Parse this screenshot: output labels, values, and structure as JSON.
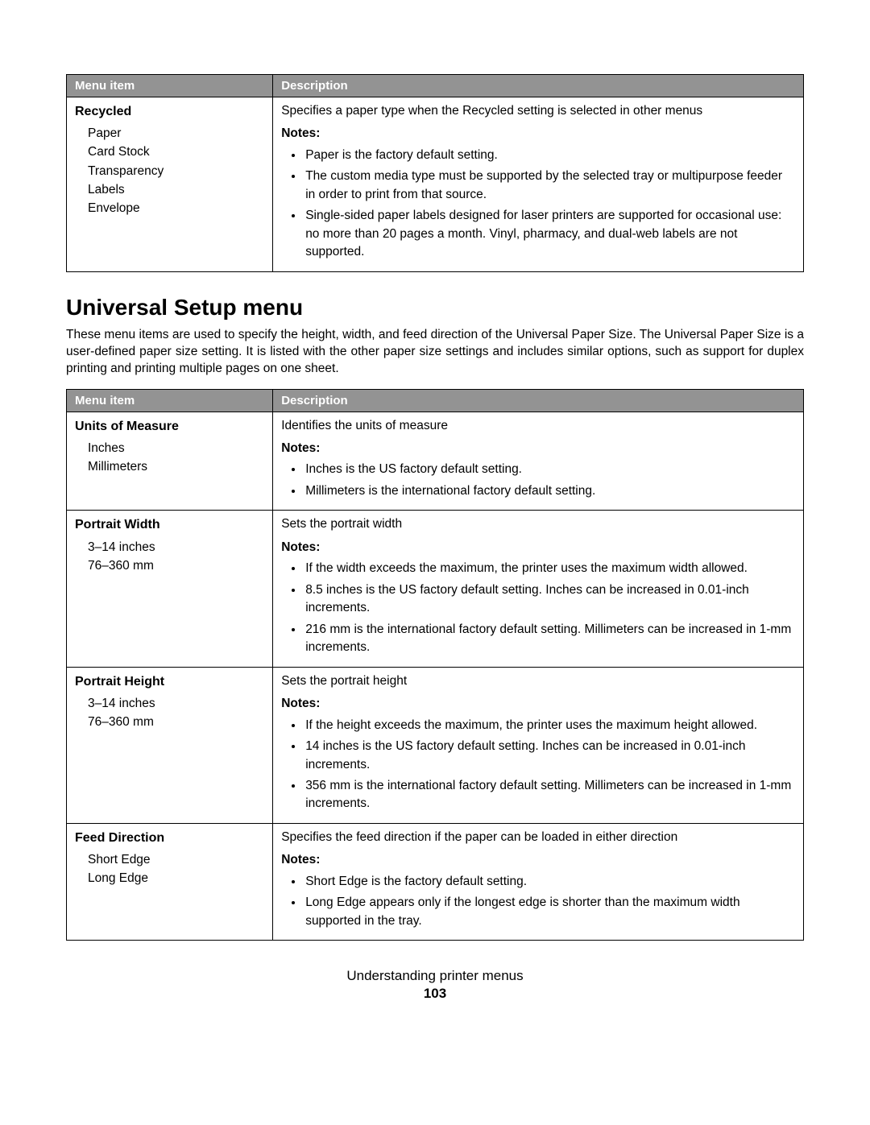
{
  "table1": {
    "headers": {
      "menu": "Menu item",
      "desc": "Description"
    },
    "rows": [
      {
        "title": "Recycled",
        "options": [
          "Paper",
          "Card Stock",
          "Transparency",
          "Labels",
          "Envelope"
        ],
        "lead": "Specifies a paper type when the Recycled setting is selected in other menus",
        "notesLabel": "Notes:",
        "notes": [
          "Paper is the factory default setting.",
          "The custom media type must be supported by the selected tray or multipurpose feeder in order to print from that source.",
          "Single-sided paper labels designed for laser printers are supported for occasional use: no more than 20 pages a month. Vinyl, pharmacy, and dual-web labels are not supported."
        ]
      }
    ]
  },
  "section": {
    "heading": "Universal Setup menu",
    "intro": "These menu items are used to specify the height, width, and feed direction of the Universal Paper Size. The Universal Paper Size is a user-defined paper size setting. It is listed with the other paper size settings and includes similar options, such as support for duplex printing and printing multiple pages on one sheet."
  },
  "table2": {
    "headers": {
      "menu": "Menu item",
      "desc": "Description"
    },
    "rows": [
      {
        "title": "Units of Measure",
        "options": [
          "Inches",
          "Millimeters"
        ],
        "lead": "Identifies the units of measure",
        "notesLabel": "Notes:",
        "notes": [
          "Inches is the US factory default setting.",
          "Millimeters is the international factory default setting."
        ]
      },
      {
        "title": "Portrait Width",
        "options": [
          "3–14 inches",
          "76–360 mm"
        ],
        "lead": "Sets the portrait width",
        "notesLabel": "Notes:",
        "notes": [
          "If the width exceeds the maximum, the printer uses the maximum width allowed.",
          "8.5 inches is the US factory default setting. Inches can be increased in 0.01-inch increments.",
          "216 mm is the international factory default setting. Millimeters can be increased in 1-mm increments."
        ]
      },
      {
        "title": "Portrait Height",
        "options": [
          "3–14 inches",
          "76–360 mm"
        ],
        "lead": "Sets the portrait height",
        "notesLabel": "Notes:",
        "notes": [
          "If the height exceeds the maximum, the printer uses the maximum height allowed.",
          "14 inches is the US factory default setting. Inches can be increased in 0.01-inch increments.",
          "356 mm is the international factory default setting. Millimeters can be increased in 1-mm increments."
        ]
      },
      {
        "title": "Feed Direction",
        "options": [
          "Short Edge",
          "Long Edge"
        ],
        "lead": "Specifies the feed direction if the paper can be loaded in either direction",
        "notesLabel": "Notes:",
        "notes": [
          "Short Edge is the factory default setting.",
          "Long Edge appears only if the longest edge is shorter than the maximum width supported in the tray."
        ]
      }
    ]
  },
  "footer": {
    "title": "Understanding printer menus",
    "page": "103"
  }
}
